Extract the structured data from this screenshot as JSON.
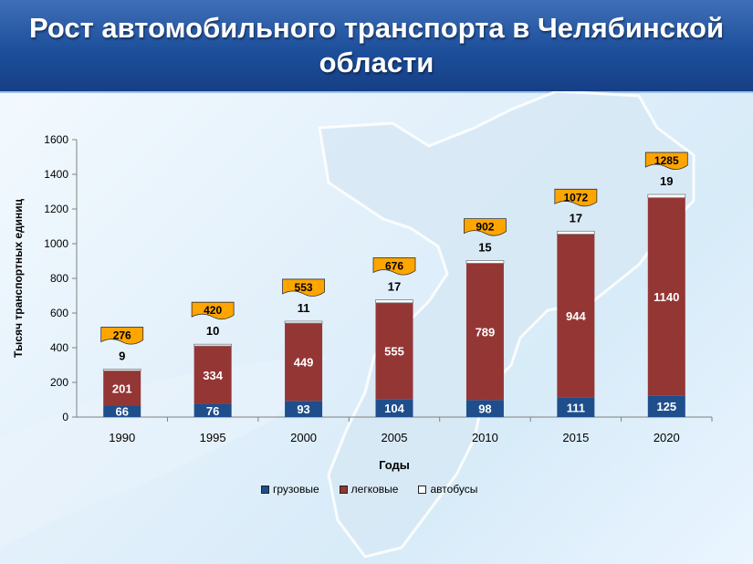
{
  "slide": {
    "title": "Рост автомобильного транспорта в Челябинской области"
  },
  "colors": {
    "title_bg": "#1d4f9b",
    "trucks": "#1f4e8c",
    "cars": "#943634",
    "buses": "#ffffff",
    "total_badge": "#ffa500"
  },
  "chart_data": {
    "type": "bar",
    "stacked": true,
    "categories": [
      "1990",
      "1995",
      "2000",
      "2005",
      "2010",
      "2015",
      "2020"
    ],
    "series": [
      {
        "name": "грузовые",
        "values": [
          66,
          76,
          93,
          104,
          98,
          111,
          125
        ]
      },
      {
        "name": "легковые",
        "values": [
          201,
          334,
          449,
          555,
          789,
          944,
          1140
        ]
      },
      {
        "name": "автобусы",
        "values": [
          9,
          10,
          11,
          17,
          15,
          17,
          19
        ]
      }
    ],
    "totals": [
      276,
      420,
      553,
      676,
      902,
      1072,
      1285
    ],
    "xlabel": "Годы",
    "ylabel": "Тысяч транспортных единиц",
    "ylim": [
      0,
      1600
    ],
    "yticks": [
      0,
      200,
      400,
      600,
      800,
      1000,
      1200,
      1400,
      1600
    ],
    "grid": false,
    "legend_position": "bottom"
  }
}
